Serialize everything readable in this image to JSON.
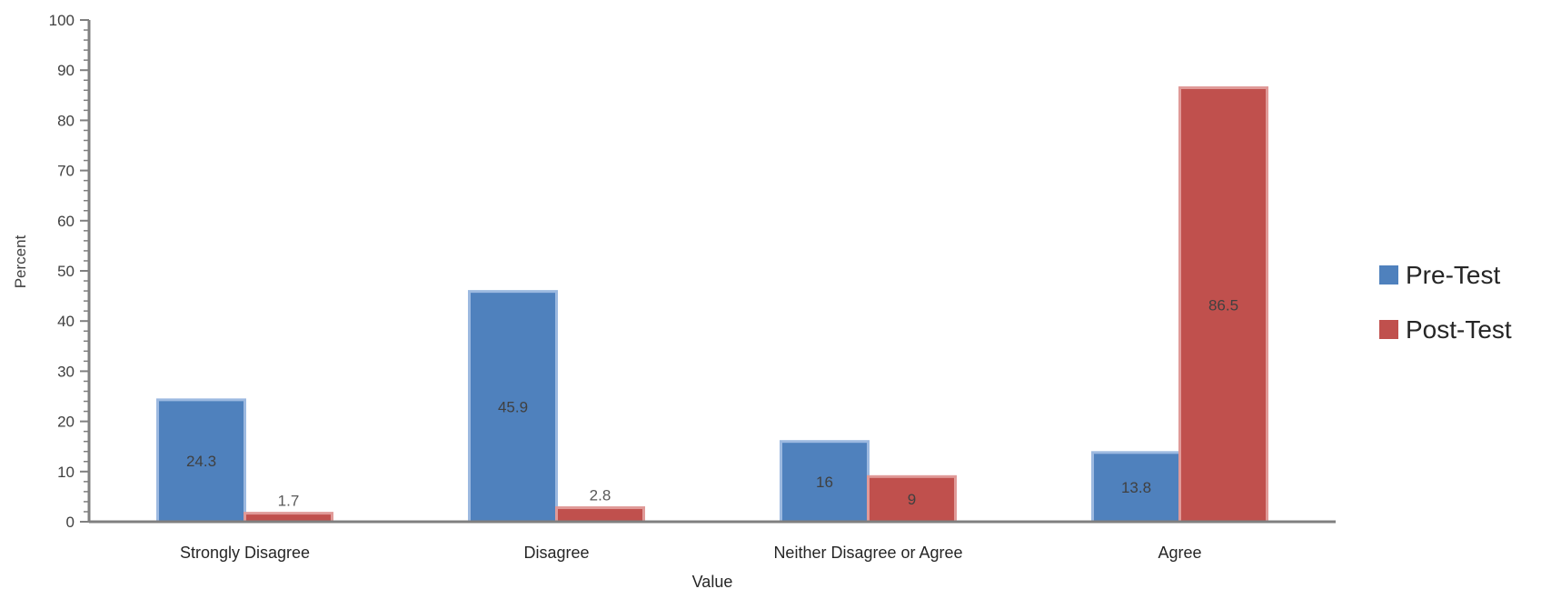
{
  "chart_data": {
    "type": "bar",
    "title": "",
    "xlabel": "Value",
    "ylabel": "Percent",
    "ylim": [
      0,
      100
    ],
    "yticks": [
      0,
      10,
      20,
      30,
      40,
      50,
      60,
      70,
      80,
      90,
      100
    ],
    "categories": [
      "Strongly Disagree",
      "Disagree",
      "Neither Disagree or Agree",
      "Agree"
    ],
    "series": [
      {
        "name": "Pre-Test",
        "color": "#4f81bd",
        "values": [
          24.3,
          45.9,
          16,
          13.8
        ],
        "labels": [
          "24.3",
          "45.9",
          "16",
          "13.8"
        ]
      },
      {
        "name": "Post-Test",
        "color": "#c0504d",
        "values": [
          1.7,
          2.8,
          9,
          86.5
        ],
        "labels": [
          "1.7",
          "2.8",
          "9",
          "86.5"
        ]
      }
    ],
    "legend": "right",
    "grid": false
  }
}
